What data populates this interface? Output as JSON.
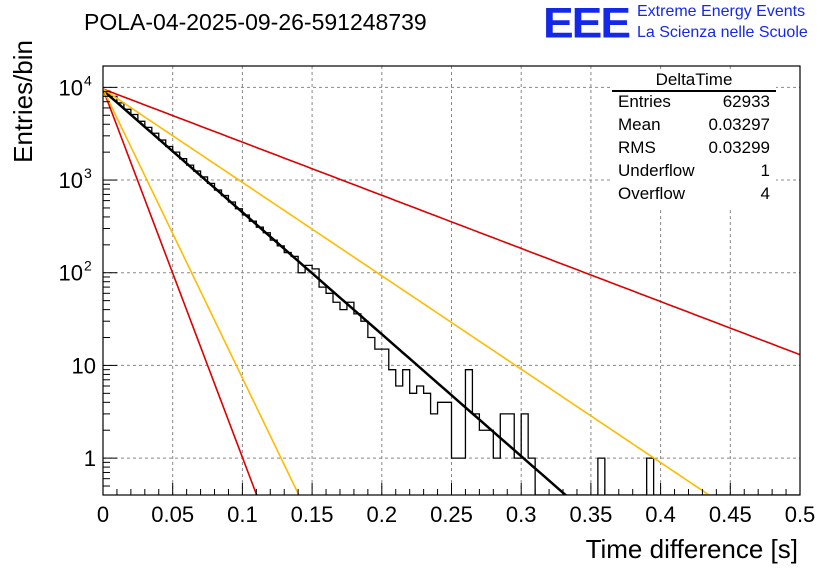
{
  "header": {
    "title": "POLA-04-2025-09-26-591248739"
  },
  "logo": {
    "mark": "EEE",
    "line1": "Extreme Energy Events",
    "line2": "La Scienza nelle Scuole",
    "color": "#1428e8"
  },
  "stats": {
    "name": "DeltaTime",
    "rows": [
      {
        "label": "Entries",
        "value": "62933"
      },
      {
        "label": "Mean",
        "value": "0.03297"
      },
      {
        "label": "RMS",
        "value": "0.03299"
      },
      {
        "label": "Underflow",
        "value": "1"
      },
      {
        "label": "Overflow",
        "value": "4"
      }
    ]
  },
  "chart_data": {
    "type": "histogram",
    "title": "POLA-04-2025-09-26-591248739",
    "xlabel": "Time difference [s]",
    "ylabel": "Entries/bin",
    "xlim": [
      0,
      0.5
    ],
    "ylog": true,
    "ylim": [
      0.4,
      17000
    ],
    "grid": true,
    "bin_width": 0.005,
    "x_ticks": [
      "0",
      "0.05",
      "0.1",
      "0.15",
      "0.2",
      "0.25",
      "0.3",
      "0.35",
      "0.4",
      "0.45",
      "0.5"
    ],
    "y_ticks": [
      {
        "value": 1,
        "label": "1"
      },
      {
        "value": 10,
        "label": "10"
      },
      {
        "value": 100,
        "label": "10",
        "exp": "2"
      },
      {
        "value": 1000,
        "label": "10",
        "exp": "3"
      },
      {
        "value": 10000,
        "label": "10",
        "exp": "4"
      }
    ],
    "counts": [
      9100,
      8000,
      6800,
      5800,
      5100,
      4300,
      3700,
      3200,
      2700,
      2300,
      2000,
      1700,
      1450,
      1250,
      1080,
      920,
      780,
      680,
      580,
      490,
      420,
      360,
      310,
      270,
      225,
      195,
      165,
      150,
      100,
      120,
      110,
      70,
      60,
      48,
      40,
      48,
      36,
      30,
      20,
      15,
      15,
      9,
      6,
      9,
      5,
      6,
      5,
      3,
      4,
      4,
      1,
      1,
      9,
      3,
      2,
      2,
      1,
      3,
      3,
      1,
      3,
      1,
      0,
      0,
      0,
      0,
      0,
      0,
      0,
      0,
      0,
      1,
      0,
      0,
      0,
      0,
      0,
      0,
      1,
      0,
      0,
      0,
      0,
      0,
      0,
      0,
      0,
      0,
      0,
      0,
      0,
      0,
      0,
      0,
      0,
      0,
      0,
      0,
      0,
      0
    ],
    "fits": [
      {
        "name": "fit",
        "color": "#000000",
        "amplitude": 9300,
        "slope_per_s": -30.3,
        "width": 2.5
      },
      {
        "name": "rate-upper",
        "color": "#dd0000",
        "amplitude": 9600,
        "slope_per_s": -13.2,
        "width": 1.6
      },
      {
        "name": "rate-lower",
        "color": "#dd0000",
        "amplitude": 9600,
        "slope_per_s": -91.5,
        "width": 1.6
      },
      {
        "name": "rate-upper-alt",
        "color": "#ffbb00",
        "amplitude": 9600,
        "slope_per_s": -23.2,
        "width": 1.6
      },
      {
        "name": "rate-lower-alt",
        "color": "#ffbb00",
        "amplitude": 9600,
        "slope_per_s": -71.8,
        "width": 1.6
      }
    ]
  }
}
